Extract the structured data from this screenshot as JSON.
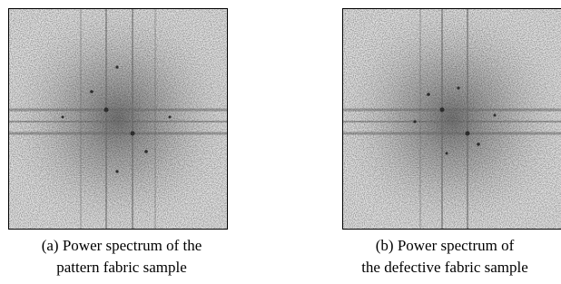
{
  "figures": [
    {
      "caption": [
        "(a) Power spectrum of the",
        "pattern fabric sample"
      ]
    },
    {
      "caption": [
        "(b) Power spectrum of",
        "the defective fabric sample"
      ]
    }
  ]
}
